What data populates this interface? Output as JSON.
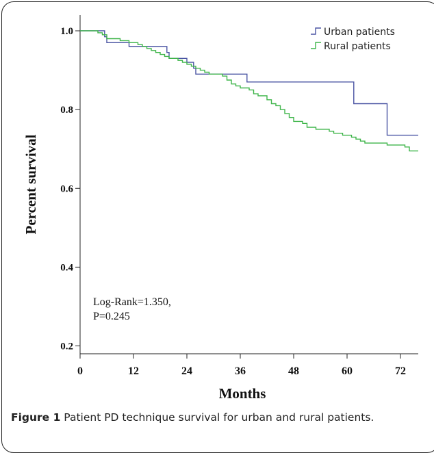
{
  "chart_data": {
    "type": "line",
    "xlabel": "Months",
    "ylabel": "Percent survival",
    "xlim": [
      0,
      76
    ],
    "ylim": [
      0.18,
      1.04
    ],
    "x_ticks": [
      0,
      12,
      24,
      36,
      48,
      60,
      72
    ],
    "y_ticks": [
      0.2,
      0.4,
      0.6,
      0.8,
      1.0
    ],
    "x_tick_labels": [
      "0",
      "12",
      "24",
      "36",
      "48",
      "60",
      "72"
    ],
    "y_tick_labels": [
      "0.2",
      "0.4",
      "0.6",
      "0.8",
      "1.0"
    ],
    "grid": false,
    "legend_position": "top-right",
    "annotation": [
      "Log-Rank=1.350,",
      "P=0.245"
    ],
    "series": [
      {
        "name": "Urban patients",
        "color": "#4a54a3",
        "points": [
          [
            0,
            1.0
          ],
          [
            5.5,
            1.0
          ],
          [
            5.5,
            0.985
          ],
          [
            6,
            0.985
          ],
          [
            6,
            0.97
          ],
          [
            11,
            0.97
          ],
          [
            11,
            0.96
          ],
          [
            19.5,
            0.96
          ],
          [
            19.5,
            0.945
          ],
          [
            20,
            0.945
          ],
          [
            20,
            0.93
          ],
          [
            24,
            0.93
          ],
          [
            24,
            0.92
          ],
          [
            25.5,
            0.92
          ],
          [
            25.5,
            0.905
          ],
          [
            26,
            0.905
          ],
          [
            26,
            0.89
          ],
          [
            37.5,
            0.89
          ],
          [
            37.5,
            0.87
          ],
          [
            61.5,
            0.87
          ],
          [
            61.5,
            0.815
          ],
          [
            69,
            0.815
          ],
          [
            69,
            0.735
          ],
          [
            76,
            0.735
          ]
        ]
      },
      {
        "name": "Rural patients",
        "color": "#3fb54a",
        "points": [
          [
            0,
            1.0
          ],
          [
            4,
            1.0
          ],
          [
            4,
            0.995
          ],
          [
            5,
            0.995
          ],
          [
            5,
            0.99
          ],
          [
            6,
            0.99
          ],
          [
            6,
            0.98
          ],
          [
            9,
            0.98
          ],
          [
            9,
            0.975
          ],
          [
            11,
            0.975
          ],
          [
            11,
            0.97
          ],
          [
            13,
            0.97
          ],
          [
            13,
            0.965
          ],
          [
            14,
            0.965
          ],
          [
            14,
            0.96
          ],
          [
            15,
            0.96
          ],
          [
            15,
            0.955
          ],
          [
            16,
            0.955
          ],
          [
            16,
            0.95
          ],
          [
            17,
            0.95
          ],
          [
            17,
            0.945
          ],
          [
            18,
            0.945
          ],
          [
            18,
            0.94
          ],
          [
            19,
            0.94
          ],
          [
            19,
            0.935
          ],
          [
            20,
            0.935
          ],
          [
            20,
            0.93
          ],
          [
            22,
            0.93
          ],
          [
            22,
            0.925
          ],
          [
            23,
            0.925
          ],
          [
            23,
            0.92
          ],
          [
            24,
            0.92
          ],
          [
            24,
            0.915
          ],
          [
            25,
            0.915
          ],
          [
            25,
            0.91
          ],
          [
            26,
            0.91
          ],
          [
            26,
            0.905
          ],
          [
            27,
            0.905
          ],
          [
            27,
            0.9
          ],
          [
            28,
            0.9
          ],
          [
            28,
            0.895
          ],
          [
            29,
            0.895
          ],
          [
            29,
            0.89
          ],
          [
            32,
            0.89
          ],
          [
            32,
            0.885
          ],
          [
            33,
            0.885
          ],
          [
            33,
            0.875
          ],
          [
            34,
            0.875
          ],
          [
            34,
            0.865
          ],
          [
            35,
            0.865
          ],
          [
            35,
            0.86
          ],
          [
            36,
            0.86
          ],
          [
            36,
            0.855
          ],
          [
            38,
            0.855
          ],
          [
            38,
            0.85
          ],
          [
            39,
            0.85
          ],
          [
            39,
            0.84
          ],
          [
            40,
            0.84
          ],
          [
            40,
            0.835
          ],
          [
            42,
            0.835
          ],
          [
            42,
            0.825
          ],
          [
            43,
            0.825
          ],
          [
            43,
            0.815
          ],
          [
            44,
            0.815
          ],
          [
            44,
            0.81
          ],
          [
            45,
            0.81
          ],
          [
            45,
            0.8
          ],
          [
            46,
            0.8
          ],
          [
            46,
            0.79
          ],
          [
            47,
            0.79
          ],
          [
            47,
            0.78
          ],
          [
            48,
            0.78
          ],
          [
            48,
            0.77
          ],
          [
            50,
            0.77
          ],
          [
            50,
            0.765
          ],
          [
            51,
            0.765
          ],
          [
            51,
            0.755
          ],
          [
            53,
            0.755
          ],
          [
            53,
            0.75
          ],
          [
            56,
            0.75
          ],
          [
            56,
            0.745
          ],
          [
            57,
            0.745
          ],
          [
            57,
            0.74
          ],
          [
            59,
            0.74
          ],
          [
            59,
            0.735
          ],
          [
            61,
            0.735
          ],
          [
            61,
            0.73
          ],
          [
            62,
            0.73
          ],
          [
            62,
            0.725
          ],
          [
            63,
            0.725
          ],
          [
            63,
            0.72
          ],
          [
            64,
            0.72
          ],
          [
            64,
            0.715
          ],
          [
            69,
            0.715
          ],
          [
            69,
            0.71
          ],
          [
            73,
            0.71
          ],
          [
            73,
            0.705
          ],
          [
            74,
            0.705
          ],
          [
            74,
            0.695
          ],
          [
            76,
            0.695
          ]
        ]
      }
    ]
  },
  "caption": {
    "label": "Figure 1",
    "text": " Patient PD technique survival for urban and rural patients."
  }
}
